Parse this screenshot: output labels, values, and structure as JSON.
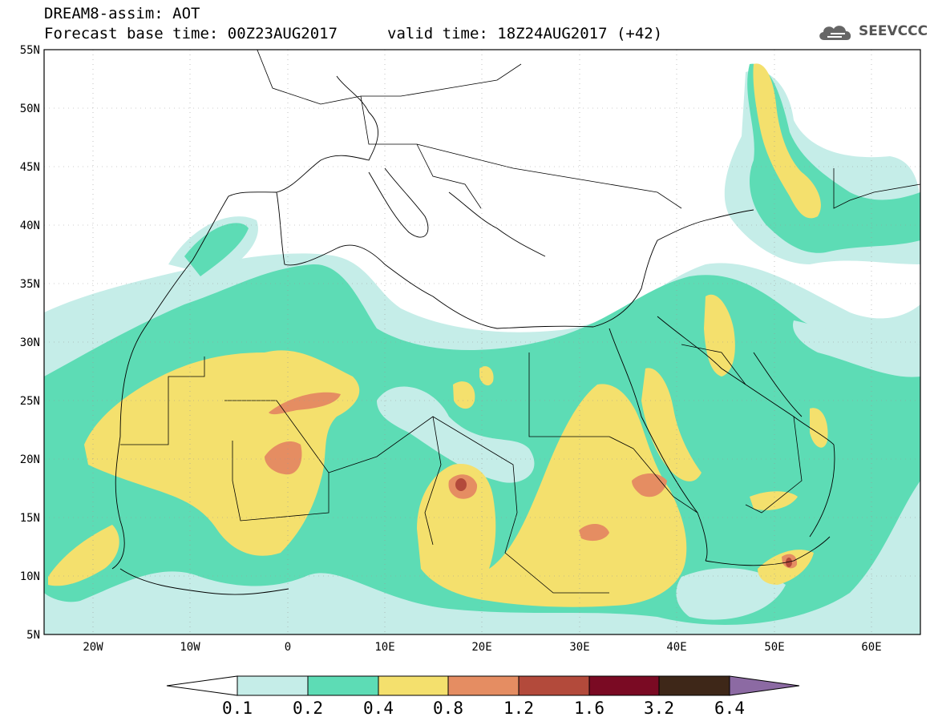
{
  "header": {
    "title_line1": "DREAM8-assim: AOT",
    "title_line2": "Forecast base time: 00Z23AUG2017",
    "valid_time": "valid time: 18Z24AUG2017 (+42)",
    "logo_text": "SEEVCCC"
  },
  "map": {
    "lon_range": [
      -25,
      65
    ],
    "lat_range": [
      5,
      55
    ],
    "lat_labels": [
      "55N",
      "50N",
      "45N",
      "40N",
      "35N",
      "30N",
      "25N",
      "20N",
      "15N",
      "10N",
      "5N"
    ],
    "lon_labels": [
      "20W",
      "10W",
      "0",
      "10E",
      "20E",
      "30E",
      "40E",
      "50E",
      "60E"
    ],
    "grid": "dotted",
    "variable": "AOT"
  },
  "colorbar": {
    "thresholds": [
      "0.1",
      "0.2",
      "0.4",
      "0.8",
      "1.2",
      "1.6",
      "3.2",
      "6.4"
    ],
    "colors": [
      "#ffffff",
      "#c5ede8",
      "#5ddcb5",
      "#f4e06d",
      "#e58d62",
      "#b34a3b",
      "#7a0a23",
      "#3e2718",
      "#8c6aa3"
    ]
  }
}
